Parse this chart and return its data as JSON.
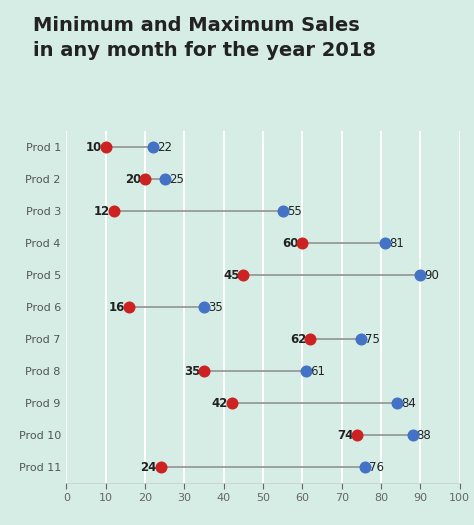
{
  "title": "Minimum and Maximum Sales\nin any month for the year 2018",
  "categories": [
    "Prod 1",
    "Prod 2",
    "Prod 3",
    "Prod 4",
    "Prod 5",
    "Prod 6",
    "Prod 7",
    "Prod 8",
    "Prod 9",
    "Prod 10",
    "Prod 11"
  ],
  "min_values": [
    10,
    20,
    12,
    60,
    45,
    16,
    62,
    35,
    42,
    74,
    24
  ],
  "max_values": [
    22,
    25,
    55,
    81,
    90,
    35,
    75,
    61,
    84,
    88,
    76
  ],
  "min_color": "#cc2222",
  "max_color": "#4472c4",
  "line_color": "#999999",
  "background_color": "#d5ede5",
  "grid_color": "#ffffff",
  "title_color": "#222222",
  "label_color": "#555555",
  "tick_color": "#666666",
  "xlim": [
    0,
    100
  ],
  "xticks": [
    0,
    10,
    20,
    30,
    40,
    50,
    60,
    70,
    80,
    90,
    100
  ],
  "dot_size": 75,
  "line_width": 1.3,
  "title_fontsize": 14,
  "label_fontsize": 8,
  "tick_fontsize": 8,
  "annot_fontsize": 8.5
}
